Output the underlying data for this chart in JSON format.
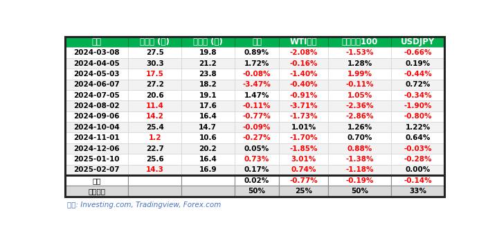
{
  "headers": [
    "日期",
    "公布値 (万)",
    "预测値 (万)",
    "黄金",
    "WTI原油",
    "纳斯达克100",
    "USDJPY"
  ],
  "rows": [
    [
      "2024-03-08",
      "27.5",
      "19.8",
      "0.89%",
      "-2.08%",
      "-1.53%",
      "-0.66%"
    ],
    [
      "2024-04-05",
      "30.3",
      "21.2",
      "1.72%",
      "-0.16%",
      "1.28%",
      "0.19%"
    ],
    [
      "2024-05-03",
      "17.5",
      "23.8",
      "-0.08%",
      "-1.40%",
      "1.99%",
      "-0.44%"
    ],
    [
      "2024-06-07",
      "27.2",
      "18.2",
      "-3.47%",
      "-0.40%",
      "-0.11%",
      "0.72%"
    ],
    [
      "2024-07-05",
      "20.6",
      "19.1",
      "1.47%",
      "-0.91%",
      "1.05%",
      "-0.34%"
    ],
    [
      "2024-08-02",
      "11.4",
      "17.6",
      "-0.11%",
      "-3.71%",
      "-2.36%",
      "-1.90%"
    ],
    [
      "2024-09-06",
      "14.2",
      "16.4",
      "-0.77%",
      "-1.73%",
      "-2.86%",
      "-0.80%"
    ],
    [
      "2024-10-04",
      "25.4",
      "14.7",
      "-0.09%",
      "1.01%",
      "1.26%",
      "1.22%"
    ],
    [
      "2024-11-01",
      "1.2",
      "10.6",
      "-0.27%",
      "-1.70%",
      "0.70%",
      "0.64%"
    ],
    [
      "2024-12-06",
      "22.7",
      "20.2",
      "0.05%",
      "-1.85%",
      "0.88%",
      "-0.03%"
    ],
    [
      "2025-01-10",
      "25.6",
      "16.4",
      "0.73%",
      "3.01%",
      "-1.38%",
      "-0.28%"
    ],
    [
      "2025-02-07",
      "14.3",
      "16.9",
      "0.17%",
      "0.74%",
      "-1.18%",
      "0.00%"
    ]
  ],
  "avg_row": [
    "平均",
    "",
    "",
    "0.02%",
    "-0.77%",
    "-0.19%",
    "-0.14%"
  ],
  "prob_row": [
    "上涨概率",
    "",
    "",
    "50%",
    "25%",
    "50%",
    "33%"
  ],
  "red_col1_rows": [
    2,
    5,
    6,
    8,
    11
  ],
  "red_col3_rows": [
    2,
    3,
    5,
    6,
    7,
    8,
    10
  ],
  "red_col4_rows": [
    0,
    1,
    2,
    3,
    4,
    5,
    6,
    8,
    9,
    10,
    11
  ],
  "red_col5_rows": [
    0,
    2,
    3,
    4,
    5,
    6,
    9,
    10,
    11
  ],
  "red_col6_rows": [
    0,
    2,
    4,
    5,
    6,
    9,
    10
  ],
  "red_avg_cols": [
    4,
    5,
    6
  ],
  "header_bg": "#00b050",
  "header_text": "#ffffff",
  "row_bg_white": "#ffffff",
  "row_bg_gray": "#f2f2f2",
  "avg_row_bg": "#ffffff",
  "prob_row_bg": "#d9d9d9",
  "default_text": "#000000",
  "red_text": "#ff0000",
  "source_text": "来源: Investing.com, Tradingview, Forex.com",
  "col_widths_rel": [
    1.55,
    1.3,
    1.3,
    1.1,
    1.2,
    1.55,
    1.3
  ]
}
